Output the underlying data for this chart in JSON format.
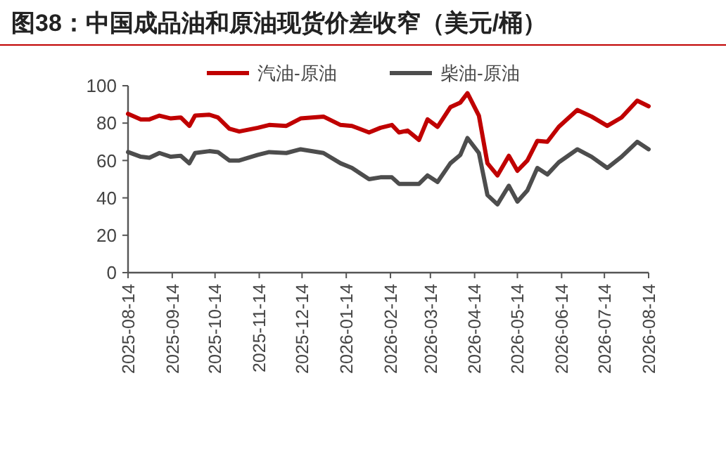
{
  "chart_data": {
    "type": "line",
    "title": "图38：中国成品油和原油现货价差收窄（美元/桶）",
    "x": [
      "2025-08-14",
      "2025-08-23",
      "2025-08-29",
      "2025-09-05",
      "2025-09-13",
      "2025-09-20",
      "2025-09-26",
      "2025-09-30",
      "2025-10-10",
      "2025-10-16",
      "2025-10-24",
      "2025-10-31",
      "2025-11-13",
      "2025-11-21",
      "2025-12-03",
      "2025-12-13",
      "2025-12-29",
      "2026-01-10",
      "2026-01-18",
      "2026-01-30",
      "2026-02-07",
      "2026-02-15",
      "2026-02-20",
      "2026-02-26",
      "2026-03-06",
      "2026-03-12",
      "2026-03-19",
      "2026-03-28",
      "2026-04-04",
      "2026-04-09",
      "2026-04-17",
      "2026-04-23",
      "2026-04-30",
      "2026-05-08",
      "2026-05-14",
      "2026-05-21",
      "2026-05-28",
      "2026-06-04",
      "2026-06-12",
      "2026-06-25",
      "2026-07-05",
      "2026-07-16",
      "2026-07-26",
      "2026-08-06",
      "2026-08-14"
    ],
    "series": [
      {
        "name": "汽油-原油",
        "color": "#c00000",
        "values": [
          85,
          82,
          82,
          84,
          82.5,
          83,
          78.5,
          84,
          84.5,
          83,
          77,
          75.5,
          77.5,
          79,
          78.5,
          82.5,
          83.5,
          79,
          78.5,
          75,
          77.5,
          79,
          75,
          76,
          71,
          82,
          78,
          88.5,
          91,
          96,
          84,
          58.5,
          52,
          62.5,
          54.5,
          60,
          70.5,
          70,
          78,
          87,
          83.5,
          78.5,
          83,
          92,
          89
        ]
      },
      {
        "name": "柴油-原油",
        "color": "#4d4d4d",
        "values": [
          64.5,
          62,
          61.5,
          64,
          62,
          62.5,
          58.5,
          64,
          65,
          64.5,
          60,
          60,
          63,
          64.5,
          64,
          66,
          64,
          58.5,
          56,
          50,
          51,
          51,
          47.5,
          47.5,
          47.5,
          52,
          48.5,
          58.5,
          63,
          72,
          64,
          41.5,
          36.5,
          46.5,
          38,
          44,
          56,
          52.5,
          59,
          66,
          62,
          56,
          62,
          70,
          66
        ]
      }
    ],
    "xlim": [
      "2025-08-14",
      "2026-08-14"
    ],
    "xticks": [
      {
        "value": "2025-08-14",
        "label": "2025-08-14"
      },
      {
        "value": "2025-09-14",
        "label": "2025-09-14"
      },
      {
        "value": "2025-10-14",
        "label": "2025-10-14"
      },
      {
        "value": "2025-11-14",
        "label": "2025-11-14"
      },
      {
        "value": "2025-12-14",
        "label": "2025-12-14"
      },
      {
        "value": "2026-01-14",
        "label": "2026-01-14"
      },
      {
        "value": "2026-02-14",
        "label": "2026-02-14"
      },
      {
        "value": "2026-03-14",
        "label": "2026-03-14"
      },
      {
        "value": "2026-04-14",
        "label": "2026-04-14"
      },
      {
        "value": "2026-05-14",
        "label": "2026-05-14"
      },
      {
        "value": "2026-06-14",
        "label": "2026-06-14"
      },
      {
        "value": "2026-07-14",
        "label": "2026-07-14"
      },
      {
        "value": "2026-08-14",
        "label": "2026-08-14"
      }
    ],
    "ylim": [
      0,
      100
    ],
    "yticks": [
      0,
      20,
      40,
      60,
      80,
      100
    ],
    "grid": false,
    "legend": "top",
    "marker": "none",
    "line_style": "solid"
  }
}
